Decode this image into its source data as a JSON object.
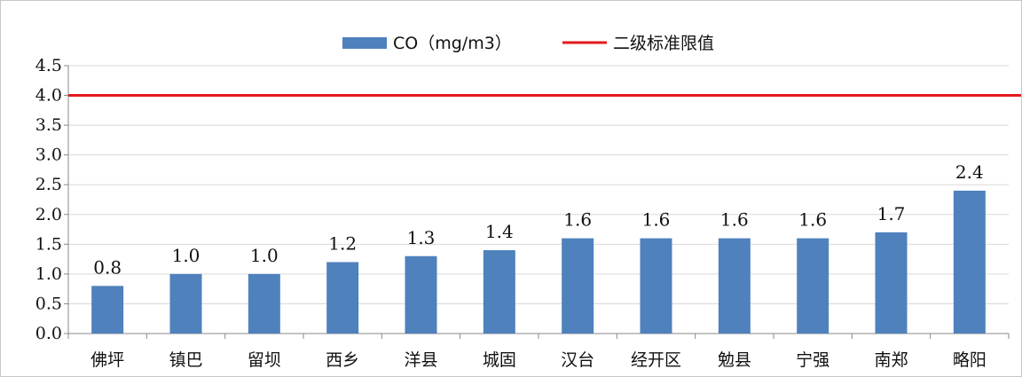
{
  "chart_data": {
    "type": "bar",
    "title": "",
    "xlabel": "",
    "ylabel": "",
    "categories": [
      "佛坪",
      "镇巴",
      "留坝",
      "西乡",
      "洋县",
      "城固",
      "汉台",
      "经开区",
      "勉县",
      "宁强",
      "南郑",
      "略阳"
    ],
    "series": [
      {
        "name": "CO（mg/m3）",
        "values": [
          0.8,
          1.0,
          1.0,
          1.2,
          1.3,
          1.4,
          1.6,
          1.6,
          1.6,
          1.6,
          1.7,
          2.4
        ],
        "color": "#4f81bd"
      }
    ],
    "data_labels": [
      "0.8",
      "1.0",
      "1.0",
      "1.2",
      "1.3",
      "1.4",
      "1.6",
      "1.6",
      "1.6",
      "1.6",
      "1.7",
      "2.4"
    ],
    "reference_line": {
      "name": "二级标准限值",
      "value": 4.0,
      "color": "#e31a1c"
    },
    "ylim": [
      0,
      4.5
    ],
    "yticks": [
      "0.0",
      "0.5",
      "1.0",
      "1.5",
      "2.0",
      "2.5",
      "3.0",
      "3.5",
      "4.0",
      "4.5"
    ],
    "grid": true,
    "legend_position": "top-center"
  }
}
